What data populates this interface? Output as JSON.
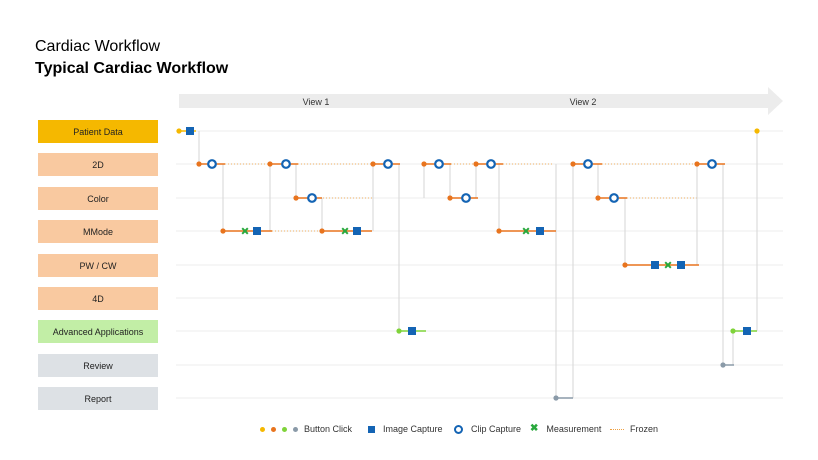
{
  "title": "Cardiac Workflow",
  "subtitle": "Typical Cardiac Workflow",
  "views": [
    "View 1",
    "View 2"
  ],
  "lanes": [
    {
      "label": "Patient Data",
      "color": "#f5b800"
    },
    {
      "label": "2D",
      "color": "#f9c9a0"
    },
    {
      "label": "Color",
      "color": "#f9c9a0"
    },
    {
      "label": "MMode",
      "color": "#f9c9a0"
    },
    {
      "label": "PW / CW",
      "color": "#f9c9a0"
    },
    {
      "label": "4D",
      "color": "#f9c9a0"
    },
    {
      "label": "Advanced Applications",
      "color": "#c2eea6"
    },
    {
      "label": "Review",
      "color": "#dde1e5"
    },
    {
      "label": "Report",
      "color": "#dde1e5"
    }
  ],
  "legend": {
    "button_click": "Button Click",
    "image_capture": "Image Capture",
    "clip_capture": "Clip Capture",
    "measurement": "Measurement",
    "frozen": "Frozen"
  },
  "colors": {
    "image": "#1464b4",
    "measure": "#28a83c",
    "orange": "#e8741e",
    "yellow": "#f5b800",
    "green": "#7fd33a",
    "gray": "#8a9aa8",
    "frozen": "#f0a040"
  }
}
